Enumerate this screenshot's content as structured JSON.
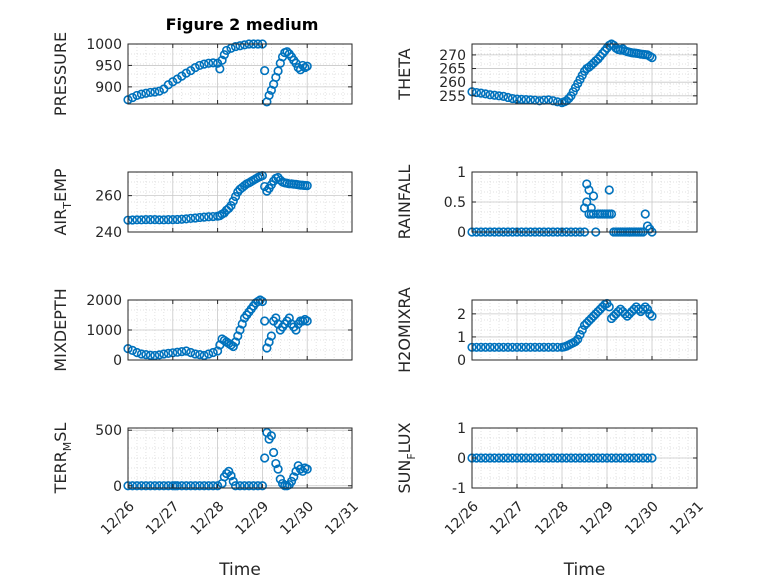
{
  "figure_title": "Figure 2 medium",
  "marker_color": "#0072BD",
  "chart_data": [
    {
      "type": "scatter",
      "name": "pressure",
      "ylabel": "PRESSURE",
      "xlabel": "",
      "ylim": [
        860,
        1000
      ],
      "yticks": [
        900,
        950,
        1000
      ],
      "ytick_labels": [
        "900",
        "950",
        "1000"
      ],
      "x_range": [
        0,
        5
      ],
      "xticks": [
        0,
        1,
        2,
        3,
        4,
        5
      ],
      "grid": true,
      "x": [
        0.0,
        0.1,
        0.2,
        0.3,
        0.4,
        0.5,
        0.6,
        0.7,
        0.8,
        0.9,
        1.0,
        1.1,
        1.2,
        1.3,
        1.4,
        1.5,
        1.6,
        1.7,
        1.8,
        1.9,
        2.0,
        2.05,
        2.1,
        2.15,
        2.2,
        2.3,
        2.4,
        2.5,
        2.6,
        2.7,
        2.8,
        2.9,
        3.0,
        3.05,
        3.1,
        3.15,
        3.2,
        3.25,
        3.3,
        3.35,
        3.4,
        3.45,
        3.5,
        3.55,
        3.6,
        3.65,
        3.7,
        3.75,
        3.8,
        3.85,
        3.9,
        3.95,
        4.0
      ],
      "values": [
        870,
        875,
        880,
        883,
        885,
        887,
        888,
        890,
        895,
        905,
        912,
        918,
        925,
        932,
        938,
        945,
        950,
        953,
        955,
        956,
        955,
        942,
        962,
        975,
        985,
        990,
        994,
        996,
        998,
        1000,
        1000,
        1000,
        1000,
        938,
        865,
        880,
        892,
        906,
        922,
        937,
        955,
        970,
        980,
        982,
        977,
        970,
        962,
        955,
        945,
        940,
        950,
        945,
        948
      ]
    },
    {
      "type": "scatter",
      "name": "theta",
      "ylabel": "THETA",
      "xlabel": "",
      "ylim": [
        252,
        274
      ],
      "yticks": [
        255,
        260,
        265,
        270
      ],
      "ytick_labels": [
        "255",
        "260",
        "265",
        "270"
      ],
      "x_range": [
        0,
        5
      ],
      "xticks": [
        0,
        1,
        2,
        3,
        4,
        5
      ],
      "grid": true,
      "x": [
        0.0,
        0.1,
        0.2,
        0.3,
        0.4,
        0.5,
        0.6,
        0.7,
        0.8,
        0.9,
        1.0,
        1.1,
        1.2,
        1.3,
        1.4,
        1.5,
        1.6,
        1.7,
        1.8,
        1.9,
        2.0,
        2.05,
        2.1,
        2.15,
        2.2,
        2.25,
        2.3,
        2.35,
        2.4,
        2.45,
        2.5,
        2.55,
        2.6,
        2.65,
        2.7,
        2.75,
        2.8,
        2.85,
        2.9,
        2.95,
        3.0,
        3.05,
        3.1,
        3.15,
        3.2,
        3.25,
        3.3,
        3.35,
        3.4,
        3.45,
        3.5,
        3.55,
        3.6,
        3.65,
        3.7,
        3.75,
        3.8,
        3.85,
        3.9,
        3.95,
        4.0
      ],
      "values": [
        256.5,
        256.2,
        256.0,
        255.7,
        255.4,
        255.2,
        255.0,
        254.8,
        254.4,
        254.0,
        253.8,
        253.7,
        253.6,
        253.5,
        253.4,
        253.2,
        253.4,
        253.5,
        253.2,
        252.8,
        252.5,
        252.8,
        253.2,
        254.0,
        255.0,
        256.5,
        258.0,
        259.5,
        261.0,
        262.5,
        264.0,
        265.0,
        265.5,
        266.2,
        267.0,
        267.8,
        268.5,
        269.5,
        270.5,
        271.5,
        272.5,
        273.5,
        274.0,
        273.5,
        272.5,
        272.0,
        271.8,
        272.2,
        271.5,
        271.2,
        271.0,
        270.8,
        270.7,
        270.6,
        270.5,
        270.3,
        270.2,
        270.1,
        270.0,
        269.5,
        269.0
      ]
    },
    {
      "type": "scatter",
      "name": "air_temp",
      "ylabel": "AIR_TEMP",
      "xlabel": "",
      "ylim": [
        240,
        273
      ],
      "yticks": [
        240,
        260
      ],
      "ytick_labels": [
        "240",
        "260"
      ],
      "x_range": [
        0,
        5
      ],
      "xticks": [
        0,
        1,
        2,
        3,
        4,
        5
      ],
      "grid": true,
      "x": [
        0.0,
        0.1,
        0.2,
        0.3,
        0.4,
        0.5,
        0.6,
        0.7,
        0.8,
        0.9,
        1.0,
        1.1,
        1.2,
        1.3,
        1.4,
        1.5,
        1.6,
        1.7,
        1.8,
        1.9,
        2.0,
        2.05,
        2.1,
        2.15,
        2.2,
        2.25,
        2.3,
        2.35,
        2.4,
        2.45,
        2.5,
        2.55,
        2.6,
        2.65,
        2.7,
        2.75,
        2.8,
        2.85,
        2.9,
        2.95,
        3.0,
        3.05,
        3.1,
        3.15,
        3.2,
        3.25,
        3.3,
        3.35,
        3.4,
        3.45,
        3.5,
        3.55,
        3.6,
        3.65,
        3.7,
        3.75,
        3.8,
        3.85,
        3.9,
        3.95,
        4.0
      ],
      "values": [
        246.5,
        246.6,
        246.7,
        246.7,
        246.8,
        246.8,
        246.8,
        246.7,
        246.7,
        246.8,
        246.8,
        246.9,
        247.0,
        247.2,
        247.5,
        247.7,
        248.0,
        248.2,
        248.4,
        248.5,
        248.7,
        249.0,
        249.8,
        250.5,
        252.0,
        253.0,
        254.5,
        257.0,
        259.5,
        262.0,
        263.5,
        264.5,
        265.5,
        266.5,
        267.0,
        267.8,
        268.5,
        269.2,
        270.0,
        270.5,
        271.0,
        265.0,
        262.5,
        264.0,
        266.0,
        268.0,
        269.5,
        270.0,
        268.5,
        267.5,
        267.0,
        266.8,
        266.5,
        266.5,
        266.3,
        266.2,
        266.0,
        265.8,
        265.7,
        265.6,
        265.5
      ]
    },
    {
      "type": "scatter",
      "name": "rainfall",
      "ylabel": "RAINFALL",
      "xlabel": "",
      "ylim": [
        0,
        1
      ],
      "yticks": [
        0,
        0.5,
        1
      ],
      "ytick_labels": [
        "0",
        "0.5",
        "1"
      ],
      "x_range": [
        0,
        5
      ],
      "xticks": [
        0,
        1,
        2,
        3,
        4,
        5
      ],
      "grid": true,
      "x": [
        0.0,
        0.1,
        0.2,
        0.3,
        0.4,
        0.5,
        0.6,
        0.7,
        0.8,
        0.9,
        1.0,
        1.1,
        1.2,
        1.3,
        1.4,
        1.5,
        1.6,
        1.7,
        1.8,
        1.9,
        2.0,
        2.1,
        2.2,
        2.3,
        2.4,
        2.5,
        2.5,
        2.55,
        2.55,
        2.6,
        2.6,
        2.65,
        2.65,
        2.7,
        2.7,
        2.75,
        2.8,
        2.85,
        2.9,
        2.95,
        3.0,
        3.05,
        3.05,
        3.1,
        3.15,
        3.2,
        3.25,
        3.3,
        3.35,
        3.4,
        3.45,
        3.5,
        3.5,
        3.55,
        3.6,
        3.65,
        3.7,
        3.75,
        3.8,
        3.85,
        3.9,
        3.95,
        4.0
      ],
      "values": [
        0,
        0,
        0,
        0,
        0,
        0,
        0,
        0,
        0,
        0,
        0,
        0,
        0,
        0,
        0,
        0,
        0,
        0,
        0,
        0,
        0,
        0,
        0,
        0,
        0,
        0.4,
        0,
        0.8,
        0.5,
        0.3,
        0.7,
        0.3,
        0.4,
        0.3,
        0.6,
        0,
        0.3,
        0.3,
        0.3,
        0.3,
        0.3,
        0.3,
        0.7,
        0.3,
        0,
        0,
        0,
        0,
        0,
        0,
        0,
        0,
        0,
        0,
        0,
        0,
        0,
        0,
        0,
        0.3,
        0.1,
        0.05,
        0
      ]
    },
    {
      "type": "scatter",
      "name": "mixdepth",
      "ylabel": "MIXDEPTH",
      "xlabel": "",
      "ylim": [
        0,
        2000
      ],
      "yticks": [
        0,
        1000,
        2000
      ],
      "ytick_labels": [
        "0",
        "1000",
        "2000"
      ],
      "x_range": [
        0,
        5
      ],
      "xticks": [
        0,
        1,
        2,
        3,
        4,
        5
      ],
      "grid": true,
      "x": [
        0.0,
        0.1,
        0.2,
        0.3,
        0.4,
        0.5,
        0.6,
        0.7,
        0.8,
        0.9,
        1.0,
        1.1,
        1.2,
        1.3,
        1.4,
        1.5,
        1.6,
        1.7,
        1.8,
        1.9,
        2.0,
        2.05,
        2.1,
        2.15,
        2.2,
        2.25,
        2.3,
        2.35,
        2.4,
        2.45,
        2.5,
        2.55,
        2.6,
        2.65,
        2.7,
        2.75,
        2.8,
        2.85,
        2.9,
        2.95,
        3.0,
        3.05,
        3.1,
        3.15,
        3.2,
        3.25,
        3.3,
        3.35,
        3.4,
        3.45,
        3.5,
        3.55,
        3.6,
        3.65,
        3.7,
        3.75,
        3.8,
        3.85,
        3.9,
        3.95,
        4.0
      ],
      "values": [
        380,
        320,
        250,
        200,
        180,
        160,
        150,
        170,
        200,
        220,
        240,
        260,
        280,
        300,
        250,
        200,
        180,
        150,
        200,
        250,
        300,
        500,
        700,
        650,
        600,
        550,
        500,
        450,
        600,
        800,
        1000,
        1200,
        1400,
        1500,
        1600,
        1700,
        1800,
        1900,
        1950,
        2000,
        1950,
        1300,
        400,
        600,
        800,
        1300,
        1400,
        1200,
        1000,
        1100,
        1200,
        1300,
        1400,
        1200,
        1100,
        1000,
        1200,
        1300,
        1300,
        1350,
        1300
      ]
    },
    {
      "type": "scatter",
      "name": "h2omixra",
      "ylabel": "H2OMIXRA",
      "xlabel": "",
      "ylim": [
        0,
        2.6
      ],
      "yticks": [
        0,
        1,
        2
      ],
      "ytick_labels": [
        "0",
        "1",
        "2"
      ],
      "x_range": [
        0,
        5
      ],
      "xticks": [
        0,
        1,
        2,
        3,
        4,
        5
      ],
      "grid": true,
      "x": [
        0.0,
        0.1,
        0.2,
        0.3,
        0.4,
        0.5,
        0.6,
        0.7,
        0.8,
        0.9,
        1.0,
        1.1,
        1.2,
        1.3,
        1.4,
        1.5,
        1.6,
        1.7,
        1.8,
        1.9,
        2.0,
        2.05,
        2.1,
        2.15,
        2.2,
        2.25,
        2.3,
        2.35,
        2.4,
        2.45,
        2.5,
        2.55,
        2.6,
        2.65,
        2.7,
        2.75,
        2.8,
        2.85,
        2.9,
        2.95,
        3.0,
        3.05,
        3.1,
        3.15,
        3.2,
        3.25,
        3.3,
        3.35,
        3.4,
        3.45,
        3.5,
        3.55,
        3.6,
        3.65,
        3.7,
        3.75,
        3.8,
        3.85,
        3.9,
        3.95,
        4.0
      ],
      "values": [
        0.55,
        0.55,
        0.55,
        0.55,
        0.55,
        0.55,
        0.55,
        0.55,
        0.55,
        0.55,
        0.55,
        0.55,
        0.55,
        0.55,
        0.55,
        0.55,
        0.55,
        0.55,
        0.55,
        0.55,
        0.55,
        0.57,
        0.6,
        0.65,
        0.7,
        0.75,
        0.8,
        0.9,
        1.1,
        1.3,
        1.5,
        1.6,
        1.7,
        1.8,
        1.9,
        2.0,
        2.1,
        2.2,
        2.3,
        2.4,
        2.45,
        2.3,
        1.8,
        1.9,
        2.0,
        2.1,
        2.2,
        2.1,
        2.0,
        1.9,
        2.0,
        2.1,
        2.2,
        2.3,
        2.2,
        2.1,
        2.2,
        2.3,
        2.2,
        2.0,
        1.9
      ]
    },
    {
      "type": "scatter",
      "name": "terr_msl",
      "ylabel": "TERR_MSL",
      "xlabel": "Time",
      "ylim": [
        -20,
        520
      ],
      "yticks": [
        0,
        500
      ],
      "ytick_labels": [
        "0",
        "500"
      ],
      "x_range": [
        0,
        5
      ],
      "xticks": [
        0,
        1,
        2,
        3,
        4,
        5
      ],
      "xtick_labels": [
        "12/26",
        "12/27",
        "12/28",
        "12/29",
        "12/30",
        "12/31"
      ],
      "grid": true,
      "x": [
        0.0,
        0.1,
        0.2,
        0.3,
        0.4,
        0.5,
        0.6,
        0.7,
        0.8,
        0.9,
        1.0,
        1.05,
        1.1,
        1.2,
        1.3,
        1.4,
        1.5,
        1.6,
        1.7,
        1.8,
        1.9,
        2.0,
        2.1,
        2.15,
        2.2,
        2.25,
        2.3,
        2.35,
        2.4,
        2.5,
        2.6,
        2.7,
        2.8,
        2.9,
        3.0,
        3.05,
        3.1,
        3.15,
        3.2,
        3.25,
        3.3,
        3.35,
        3.4,
        3.45,
        3.5,
        3.55,
        3.6,
        3.65,
        3.7,
        3.75,
        3.8,
        3.85,
        3.9,
        3.95,
        4.0
      ],
      "values": [
        0,
        0,
        0,
        0,
        0,
        0,
        0,
        0,
        0,
        0,
        0,
        0,
        0,
        0,
        0,
        0,
        0,
        0,
        0,
        0,
        0,
        0,
        20,
        80,
        110,
        130,
        90,
        40,
        0,
        0,
        0,
        0,
        0,
        0,
        0,
        250,
        480,
        420,
        450,
        300,
        200,
        150,
        60,
        20,
        0,
        0,
        10,
        40,
        80,
        130,
        180,
        150,
        130,
        160,
        150
      ]
    },
    {
      "type": "scatter",
      "name": "sun_flux",
      "ylabel": "SUN_FLUX",
      "xlabel": "Time",
      "ylim": [
        -1,
        1
      ],
      "yticks": [
        -1,
        0,
        1
      ],
      "ytick_labels": [
        "-1",
        "0",
        "1"
      ],
      "x_range": [
        0,
        5
      ],
      "xticks": [
        0,
        1,
        2,
        3,
        4,
        5
      ],
      "xtick_labels": [
        "12/26",
        "12/27",
        "12/28",
        "12/29",
        "12/30",
        "12/31"
      ],
      "grid": true,
      "x": [
        0.0,
        0.1,
        0.2,
        0.3,
        0.4,
        0.5,
        0.6,
        0.7,
        0.8,
        0.9,
        1.0,
        1.1,
        1.2,
        1.3,
        1.4,
        1.5,
        1.6,
        1.7,
        1.8,
        1.9,
        2.0,
        2.1,
        2.2,
        2.3,
        2.4,
        2.5,
        2.6,
        2.7,
        2.8,
        2.9,
        3.0,
        3.1,
        3.2,
        3.3,
        3.4,
        3.5,
        3.6,
        3.7,
        3.8,
        3.9,
        4.0
      ],
      "values": [
        0,
        0,
        0,
        0,
        0,
        0,
        0,
        0,
        0,
        0,
        0,
        0,
        0,
        0,
        0,
        0,
        0,
        0,
        0,
        0,
        0,
        0,
        0,
        0,
        0,
        0,
        0,
        0,
        0,
        0,
        0,
        0,
        0,
        0,
        0,
        0,
        0,
        0,
        0,
        0,
        0
      ]
    }
  ]
}
